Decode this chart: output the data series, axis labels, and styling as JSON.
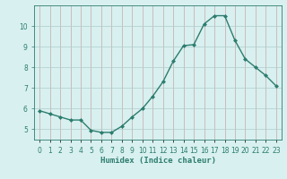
{
  "xlabel": "Humidex (Indice chaleur)",
  "x": [
    0,
    1,
    2,
    3,
    4,
    5,
    6,
    7,
    8,
    9,
    10,
    11,
    12,
    13,
    14,
    15,
    16,
    17,
    18,
    19,
    20,
    21,
    22,
    23
  ],
  "y": [
    5.9,
    5.75,
    5.6,
    5.45,
    5.45,
    4.95,
    4.85,
    4.85,
    5.15,
    5.6,
    6.0,
    6.6,
    7.3,
    8.3,
    9.05,
    9.1,
    10.1,
    10.5,
    10.5,
    9.3,
    8.4,
    8.0,
    7.6,
    7.1
  ],
  "line_color": "#2d7d6e",
  "marker": "D",
  "marker_size": 2.0,
  "line_width": 1.0,
  "bg_color": "#d8f0f0",
  "grid_color": "#b8d8d8",
  "grid_color2": "#c8a8a8",
  "ylim": [
    4.5,
    11.0
  ],
  "xlim": [
    -0.5,
    23.5
  ],
  "yticks": [
    5,
    6,
    7,
    8,
    9,
    10
  ],
  "xtick_labels": [
    "0",
    "1",
    "2",
    "3",
    "4",
    "5",
    "6",
    "7",
    "8",
    "9",
    "10",
    "11",
    "12",
    "13",
    "14",
    "15",
    "16",
    "17",
    "18",
    "19",
    "20",
    "21",
    "22",
    "23"
  ],
  "tick_color": "#2d7d6e",
  "label_fontsize": 6.5,
  "tick_fontsize": 5.5
}
